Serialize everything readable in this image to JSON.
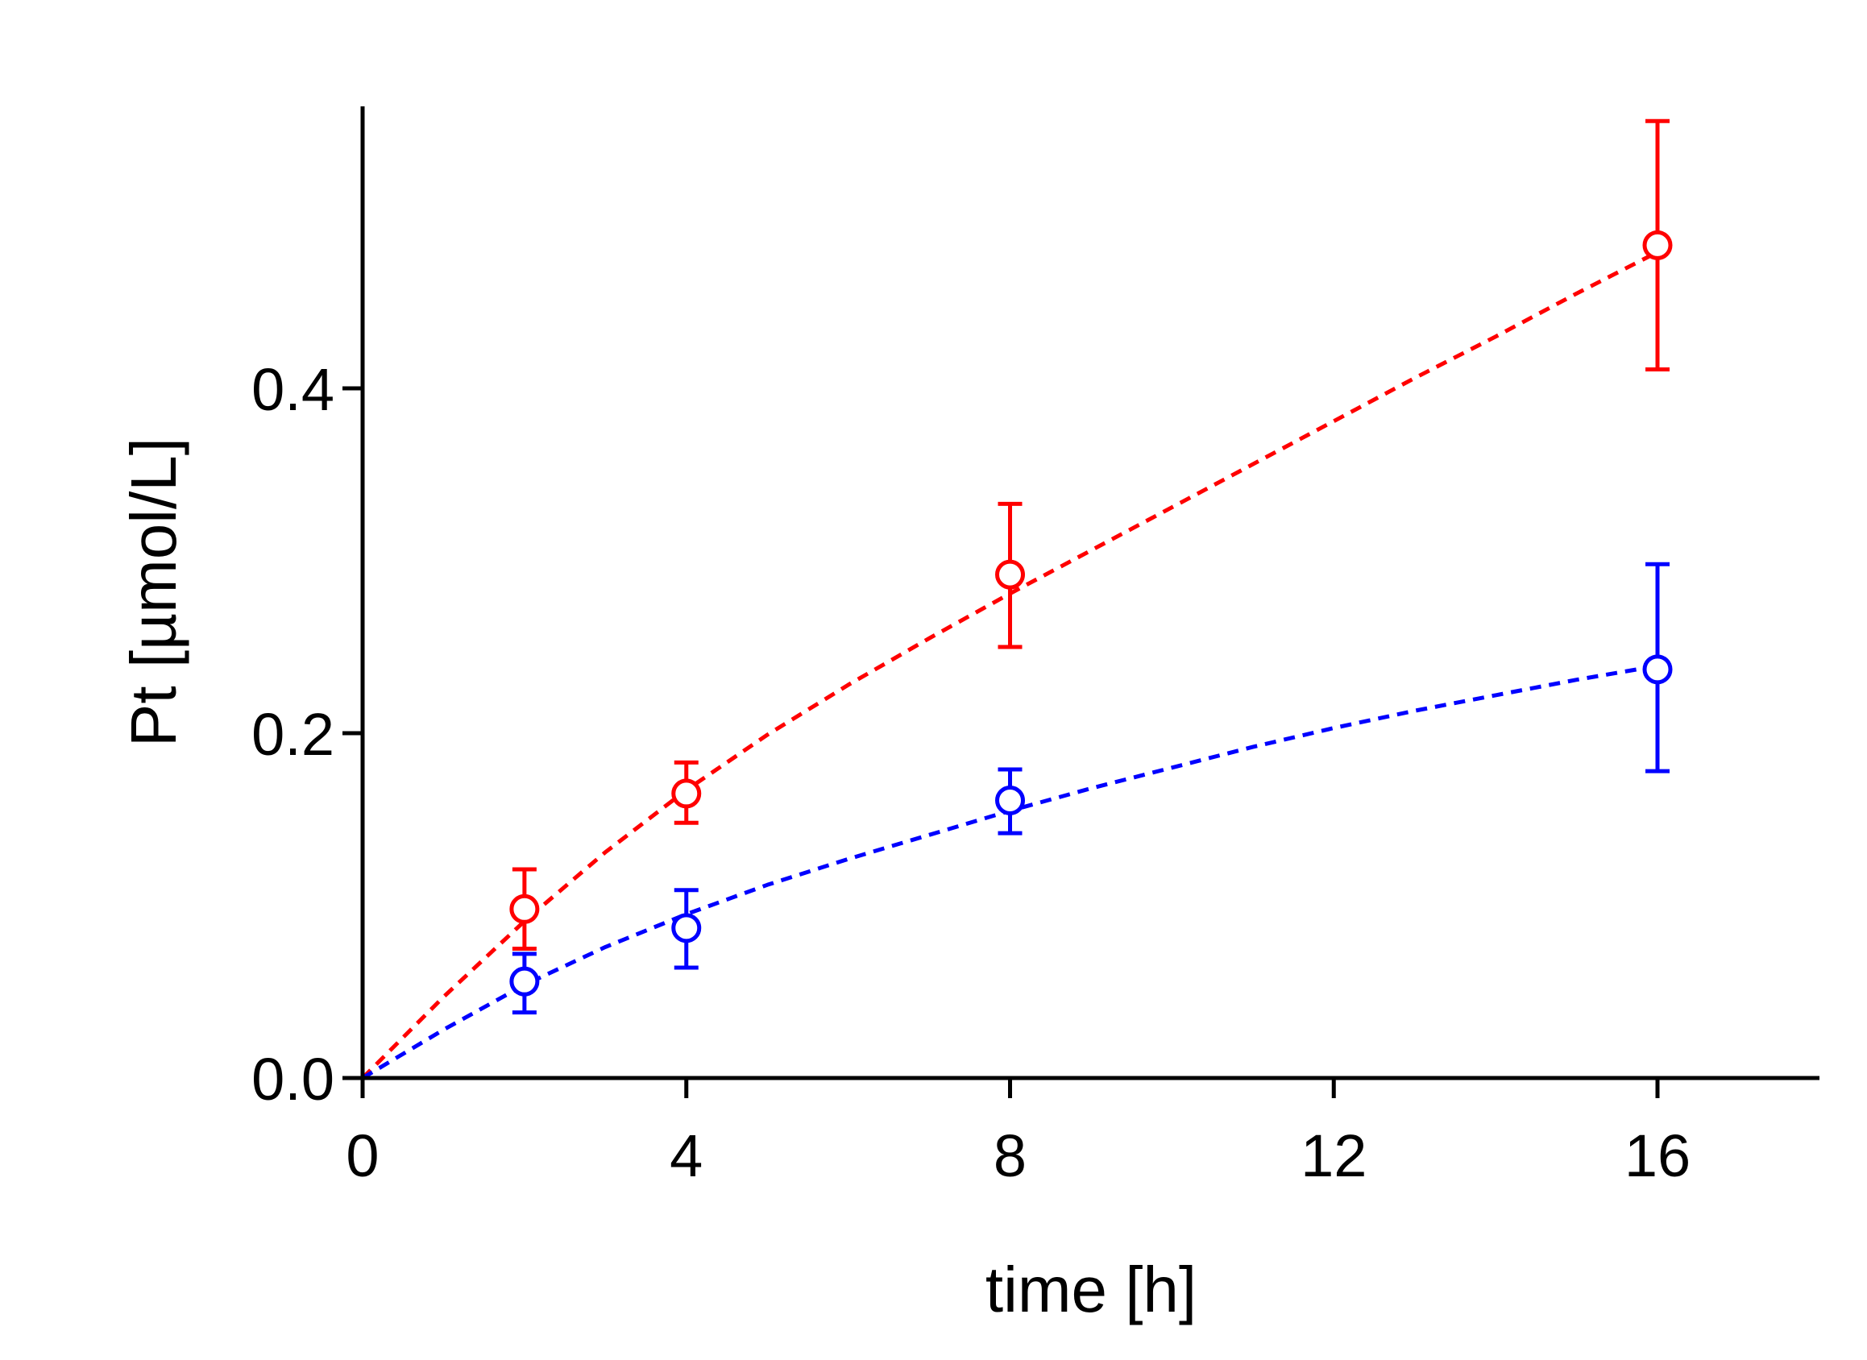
{
  "chart_data": {
    "type": "scatter",
    "title": "",
    "xlabel": "time [h]",
    "ylabel": "Pt [µmol/L]",
    "xlim": [
      0,
      18
    ],
    "ylim": [
      0,
      0.56
    ],
    "xticks": [
      0,
      4,
      8,
      12,
      16
    ],
    "xtick_labels": [
      "0",
      "4",
      "8",
      "12",
      "16"
    ],
    "yticks": [
      0.0,
      0.2,
      0.4
    ],
    "ytick_labels": [
      "0.0",
      "0.2",
      "0.4"
    ],
    "grid": false,
    "legend": "none",
    "series": [
      {
        "name": "red",
        "color": "#ff0000",
        "marker": "open-circle",
        "x": [
          2,
          4,
          8,
          16
        ],
        "y": [
          0.098,
          0.165,
          0.292,
          0.483
        ],
        "err_low": [
          0.075,
          0.148,
          0.25,
          0.411
        ],
        "err_high": [
          0.121,
          0.183,
          0.333,
          0.555
        ],
        "fit": {
          "style": "dashed",
          "x": [
            0,
            1,
            2,
            3,
            4,
            5,
            6,
            7,
            8,
            9,
            10,
            11,
            12,
            13,
            14,
            15,
            16
          ],
          "y": [
            0,
            0.047,
            0.091,
            0.131,
            0.167,
            0.199,
            0.228,
            0.255,
            0.281,
            0.306,
            0.331,
            0.356,
            0.381,
            0.406,
            0.43,
            0.455,
            0.479
          ]
        }
      },
      {
        "name": "blue",
        "color": "#0000ff",
        "marker": "open-circle",
        "x": [
          2,
          4,
          8,
          16
        ],
        "y": [
          0.056,
          0.087,
          0.161,
          0.237
        ],
        "err_low": [
          0.038,
          0.064,
          0.142,
          0.178
        ],
        "err_high": [
          0.072,
          0.109,
          0.179,
          0.298
        ],
        "fit": {
          "style": "dashed",
          "x": [
            0,
            1,
            2,
            3,
            4,
            5,
            6,
            7,
            8,
            9,
            10,
            11,
            12,
            13,
            14,
            15,
            16
          ],
          "y": [
            0,
            0.028,
            0.054,
            0.076,
            0.095,
            0.112,
            0.127,
            0.141,
            0.155,
            0.168,
            0.18,
            0.192,
            0.203,
            0.213,
            0.222,
            0.231,
            0.239
          ]
        }
      }
    ]
  }
}
